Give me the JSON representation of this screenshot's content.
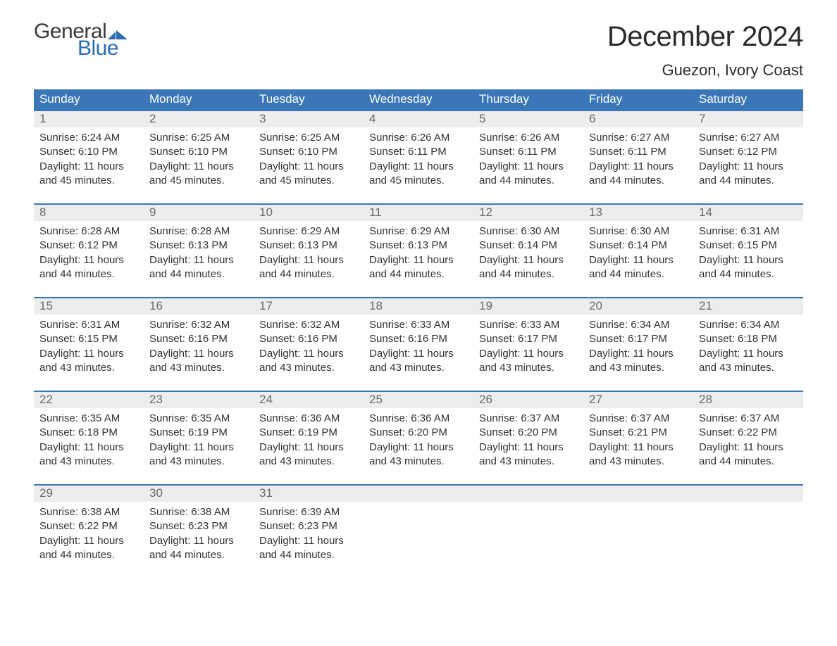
{
  "logo": {
    "text_general": "General",
    "text_blue": "Blue",
    "flag_color": "#2f6fb0"
  },
  "header": {
    "month_title": "December 2024",
    "location": "Guezon, Ivory Coast"
  },
  "colors": {
    "header_bg": "#3b77b8",
    "header_text": "#ffffff",
    "week_border": "#3b77b8",
    "date_row_bg": "#ededed",
    "date_num_color": "#6b6b6b",
    "body_text": "#333333",
    "background": "#ffffff"
  },
  "day_names": [
    "Sunday",
    "Monday",
    "Tuesday",
    "Wednesday",
    "Thursday",
    "Friday",
    "Saturday"
  ],
  "weeks": [
    [
      {
        "date": "1",
        "sunrise": "6:24 AM",
        "sunset": "6:10 PM",
        "daylight_h": 11,
        "daylight_m": 45
      },
      {
        "date": "2",
        "sunrise": "6:25 AM",
        "sunset": "6:10 PM",
        "daylight_h": 11,
        "daylight_m": 45
      },
      {
        "date": "3",
        "sunrise": "6:25 AM",
        "sunset": "6:10 PM",
        "daylight_h": 11,
        "daylight_m": 45
      },
      {
        "date": "4",
        "sunrise": "6:26 AM",
        "sunset": "6:11 PM",
        "daylight_h": 11,
        "daylight_m": 45
      },
      {
        "date": "5",
        "sunrise": "6:26 AM",
        "sunset": "6:11 PM",
        "daylight_h": 11,
        "daylight_m": 44
      },
      {
        "date": "6",
        "sunrise": "6:27 AM",
        "sunset": "6:11 PM",
        "daylight_h": 11,
        "daylight_m": 44
      },
      {
        "date": "7",
        "sunrise": "6:27 AM",
        "sunset": "6:12 PM",
        "daylight_h": 11,
        "daylight_m": 44
      }
    ],
    [
      {
        "date": "8",
        "sunrise": "6:28 AM",
        "sunset": "6:12 PM",
        "daylight_h": 11,
        "daylight_m": 44
      },
      {
        "date": "9",
        "sunrise": "6:28 AM",
        "sunset": "6:13 PM",
        "daylight_h": 11,
        "daylight_m": 44
      },
      {
        "date": "10",
        "sunrise": "6:29 AM",
        "sunset": "6:13 PM",
        "daylight_h": 11,
        "daylight_m": 44
      },
      {
        "date": "11",
        "sunrise": "6:29 AM",
        "sunset": "6:13 PM",
        "daylight_h": 11,
        "daylight_m": 44
      },
      {
        "date": "12",
        "sunrise": "6:30 AM",
        "sunset": "6:14 PM",
        "daylight_h": 11,
        "daylight_m": 44
      },
      {
        "date": "13",
        "sunrise": "6:30 AM",
        "sunset": "6:14 PM",
        "daylight_h": 11,
        "daylight_m": 44
      },
      {
        "date": "14",
        "sunrise": "6:31 AM",
        "sunset": "6:15 PM",
        "daylight_h": 11,
        "daylight_m": 44
      }
    ],
    [
      {
        "date": "15",
        "sunrise": "6:31 AM",
        "sunset": "6:15 PM",
        "daylight_h": 11,
        "daylight_m": 43
      },
      {
        "date": "16",
        "sunrise": "6:32 AM",
        "sunset": "6:16 PM",
        "daylight_h": 11,
        "daylight_m": 43
      },
      {
        "date": "17",
        "sunrise": "6:32 AM",
        "sunset": "6:16 PM",
        "daylight_h": 11,
        "daylight_m": 43
      },
      {
        "date": "18",
        "sunrise": "6:33 AM",
        "sunset": "6:16 PM",
        "daylight_h": 11,
        "daylight_m": 43
      },
      {
        "date": "19",
        "sunrise": "6:33 AM",
        "sunset": "6:17 PM",
        "daylight_h": 11,
        "daylight_m": 43
      },
      {
        "date": "20",
        "sunrise": "6:34 AM",
        "sunset": "6:17 PM",
        "daylight_h": 11,
        "daylight_m": 43
      },
      {
        "date": "21",
        "sunrise": "6:34 AM",
        "sunset": "6:18 PM",
        "daylight_h": 11,
        "daylight_m": 43
      }
    ],
    [
      {
        "date": "22",
        "sunrise": "6:35 AM",
        "sunset": "6:18 PM",
        "daylight_h": 11,
        "daylight_m": 43
      },
      {
        "date": "23",
        "sunrise": "6:35 AM",
        "sunset": "6:19 PM",
        "daylight_h": 11,
        "daylight_m": 43
      },
      {
        "date": "24",
        "sunrise": "6:36 AM",
        "sunset": "6:19 PM",
        "daylight_h": 11,
        "daylight_m": 43
      },
      {
        "date": "25",
        "sunrise": "6:36 AM",
        "sunset": "6:20 PM",
        "daylight_h": 11,
        "daylight_m": 43
      },
      {
        "date": "26",
        "sunrise": "6:37 AM",
        "sunset": "6:20 PM",
        "daylight_h": 11,
        "daylight_m": 43
      },
      {
        "date": "27",
        "sunrise": "6:37 AM",
        "sunset": "6:21 PM",
        "daylight_h": 11,
        "daylight_m": 43
      },
      {
        "date": "28",
        "sunrise": "6:37 AM",
        "sunset": "6:22 PM",
        "daylight_h": 11,
        "daylight_m": 44
      }
    ],
    [
      {
        "date": "29",
        "sunrise": "6:38 AM",
        "sunset": "6:22 PM",
        "daylight_h": 11,
        "daylight_m": 44
      },
      {
        "date": "30",
        "sunrise": "6:38 AM",
        "sunset": "6:23 PM",
        "daylight_h": 11,
        "daylight_m": 44
      },
      {
        "date": "31",
        "sunrise": "6:39 AM",
        "sunset": "6:23 PM",
        "daylight_h": 11,
        "daylight_m": 44
      },
      null,
      null,
      null,
      null
    ]
  ],
  "labels": {
    "sunrise": "Sunrise:",
    "sunset": "Sunset:",
    "daylight_prefix": "Daylight:",
    "hours_word": "hours",
    "and_word": "and",
    "minutes_word": "minutes."
  }
}
